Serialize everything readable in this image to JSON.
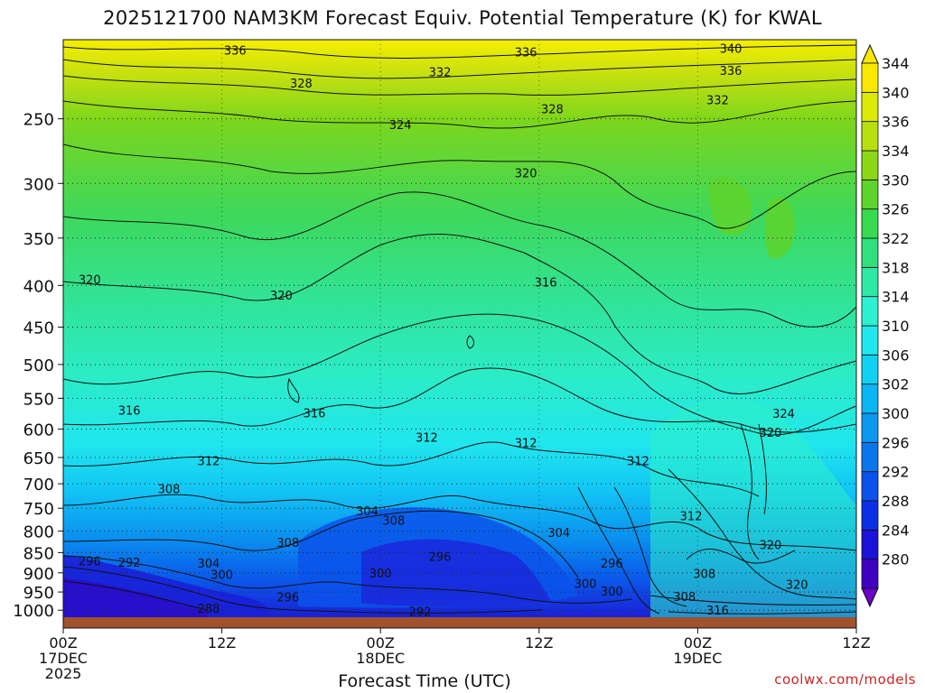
{
  "title": "2025121700 NAM3KM Forecast Equiv. Potential Temperature (K) for KWAL",
  "credit": "coolwx.com/models",
  "chart_data": {
    "type": "heatmap",
    "xlabel": "Forecast Time (UTC)",
    "ylabel": "",
    "x_ticks": [
      {
        "hour": 0,
        "lines": [
          "00Z",
          "17DEC",
          "2025"
        ]
      },
      {
        "hour": 12,
        "lines": [
          "12Z"
        ]
      },
      {
        "hour": 24,
        "lines": [
          "00Z",
          "18DEC"
        ]
      },
      {
        "hour": 36,
        "lines": [
          "12Z"
        ]
      },
      {
        "hour": 48,
        "lines": [
          "00Z",
          "19DEC"
        ]
      },
      {
        "hour": 60,
        "lines": [
          "12Z"
        ]
      }
    ],
    "xlim": [
      0,
      60
    ],
    "y_ticks": [
      250,
      300,
      350,
      400,
      450,
      500,
      550,
      600,
      650,
      700,
      750,
      800,
      850,
      900,
      950,
      1000
    ],
    "ylim_hpa": [
      200,
      1020
    ],
    "colorbar": {
      "levels": [
        280,
        284,
        288,
        292,
        296,
        300,
        302,
        306,
        310,
        314,
        318,
        322,
        326,
        330,
        334,
        336,
        340,
        344
      ],
      "colors": [
        "#3f00c0",
        "#1a12d8",
        "#0a2fe6",
        "#0a52ea",
        "#0a76ee",
        "#0a98f1",
        "#0ab6f3",
        "#10d2f5",
        "#22e6ee",
        "#2ef0d2",
        "#2ee8a8",
        "#30e07c",
        "#38da50",
        "#5ed42c",
        "#8cd818",
        "#b8e010",
        "#dcea08",
        "#fae800"
      ]
    },
    "contour_labels": [
      {
        "text": "336",
        "hour": 13.0,
        "p": 206
      },
      {
        "text": "336",
        "hour": 35.0,
        "p": 207
      },
      {
        "text": "340",
        "hour": 50.5,
        "p": 205
      },
      {
        "text": "336",
        "hour": 50.5,
        "p": 218
      },
      {
        "text": "332",
        "hour": 28.5,
        "p": 219
      },
      {
        "text": "328",
        "hour": 18.0,
        "p": 226
      },
      {
        "text": "332",
        "hour": 49.5,
        "p": 237
      },
      {
        "text": "328",
        "hour": 37.0,
        "p": 243
      },
      {
        "text": "324",
        "hour": 25.5,
        "p": 254
      },
      {
        "text": "320",
        "hour": 35.0,
        "p": 291
      },
      {
        "text": "320",
        "hour": 2.0,
        "p": 393
      },
      {
        "text": "320",
        "hour": 16.5,
        "p": 411
      },
      {
        "text": "316",
        "hour": 36.5,
        "p": 396
      },
      {
        "text": "316",
        "hour": 5.0,
        "p": 569
      },
      {
        "text": "316",
        "hour": 19.0,
        "p": 573
      },
      {
        "text": "324",
        "hour": 54.5,
        "p": 574
      },
      {
        "text": "320",
        "hour": 53.5,
        "p": 605
      },
      {
        "text": "312",
        "hour": 27.5,
        "p": 614
      },
      {
        "text": "312",
        "hour": 35.0,
        "p": 623
      },
      {
        "text": "312",
        "hour": 11.0,
        "p": 656
      },
      {
        "text": "312",
        "hour": 43.5,
        "p": 656
      },
      {
        "text": "308",
        "hour": 8.0,
        "p": 710
      },
      {
        "text": "304",
        "hour": 23.0,
        "p": 755
      },
      {
        "text": "308",
        "hour": 25.0,
        "p": 776
      },
      {
        "text": "312",
        "hour": 47.5,
        "p": 766
      },
      {
        "text": "304",
        "hour": 37.5,
        "p": 803
      },
      {
        "text": "308",
        "hour": 17.0,
        "p": 826
      },
      {
        "text": "296",
        "hour": 28.5,
        "p": 859
      },
      {
        "text": "320",
        "hour": 53.5,
        "p": 831
      },
      {
        "text": "296",
        "hour": 2.0,
        "p": 870
      },
      {
        "text": "292",
        "hour": 5.0,
        "p": 873
      },
      {
        "text": "304",
        "hour": 11.0,
        "p": 876
      },
      {
        "text": "300",
        "hour": 12.0,
        "p": 904
      },
      {
        "text": "300",
        "hour": 24.0,
        "p": 900
      },
      {
        "text": "296",
        "hour": 41.5,
        "p": 876
      },
      {
        "text": "308",
        "hour": 48.5,
        "p": 902
      },
      {
        "text": "300",
        "hour": 39.5,
        "p": 927
      },
      {
        "text": "300",
        "hour": 41.5,
        "p": 947
      },
      {
        "text": "296",
        "hour": 17.0,
        "p": 963
      },
      {
        "text": "308",
        "hour": 47.0,
        "p": 962
      },
      {
        "text": "320",
        "hour": 55.5,
        "p": 930
      },
      {
        "text": "288",
        "hour": 11.0,
        "p": 994
      },
      {
        "text": "292",
        "hour": 27.0,
        "p": 1003
      },
      {
        "text": "316",
        "hour": 49.5,
        "p": 1000
      }
    ]
  }
}
